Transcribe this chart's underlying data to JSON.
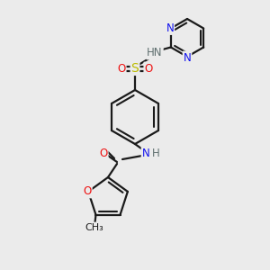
{
  "background_color": "#ebebeb",
  "bond_color": "#1a1a1a",
  "atom_colors": {
    "N": "#1010ee",
    "O": "#ee1010",
    "S": "#bbbb00",
    "H": "#607070",
    "C": "#1a1a1a"
  },
  "font_size_atom": 8.5,
  "fig_size": [
    3.0,
    3.0
  ],
  "dpi": 100
}
